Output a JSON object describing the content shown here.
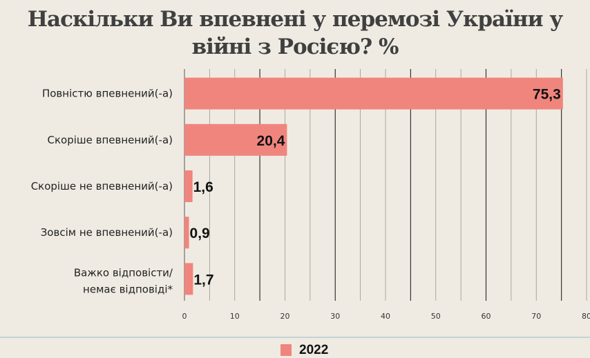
{
  "chart_data": {
    "type": "bar",
    "orientation": "horizontal",
    "title": "Наскільки Ви впевнені у перемозі України у війні з Росією? %",
    "categories": [
      "Повністю впевнений(-а)",
      "Скоріше впевнений(-а)",
      "Скоріше не впевнений(-а)",
      "Зовсім не впевнений(-а)",
      "Важко відповісти/ немає відповіді*"
    ],
    "series": [
      {
        "name": "2022",
        "values": [
          75.3,
          20.4,
          1.6,
          0.9,
          1.7
        ],
        "labels": [
          "75,3",
          "20,4",
          "1,6",
          "0,9",
          "1,7"
        ],
        "color": "#f0857d"
      }
    ],
    "xlim": [
      0,
      80
    ],
    "xticks": [
      0,
      10,
      20,
      30,
      40,
      50,
      60,
      70,
      80
    ],
    "grid": true,
    "legend": "bottom"
  }
}
